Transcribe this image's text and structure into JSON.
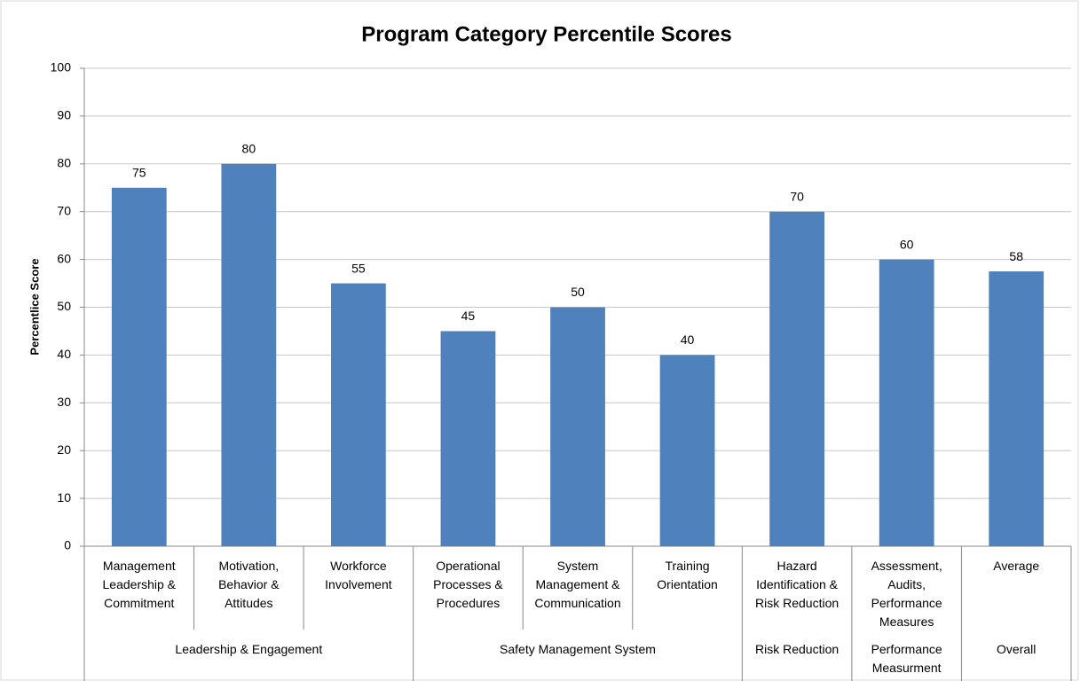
{
  "chart_data": {
    "type": "bar",
    "title": "Program Category Percentile Scores",
    "ylabel": "Percentlice Score",
    "categories": [
      "Management Leadership & Commitment",
      "Motivation, Behavior & Attitudes",
      "Workforce Involvement",
      "Operational Processes & Procedures",
      "System Management & Communication",
      "Training Orientation",
      "Hazard Identification & Risk Reduction",
      "Assessment, Audits, Performance Measures",
      "Average"
    ],
    "category_groups": [
      "Leadership & Engagement",
      "Leadership & Engagement",
      "Leadership & Engagement",
      "Safety Management System",
      "Safety Management System",
      "Safety Management System",
      "Risk Reduction",
      "Performance Measurment",
      "Overall"
    ],
    "values": [
      75,
      80,
      55,
      45,
      50,
      40,
      70,
      60,
      57.5
    ],
    "value_labels": [
      "75",
      "80",
      "55",
      "45",
      "50",
      "40",
      "70",
      "60",
      "58"
    ],
    "color": "#4f81bd",
    "ylim": [
      0,
      100
    ],
    "yticks": [
      0,
      10,
      20,
      30,
      40,
      50,
      60,
      70,
      80,
      90,
      100
    ],
    "grid": true
  }
}
